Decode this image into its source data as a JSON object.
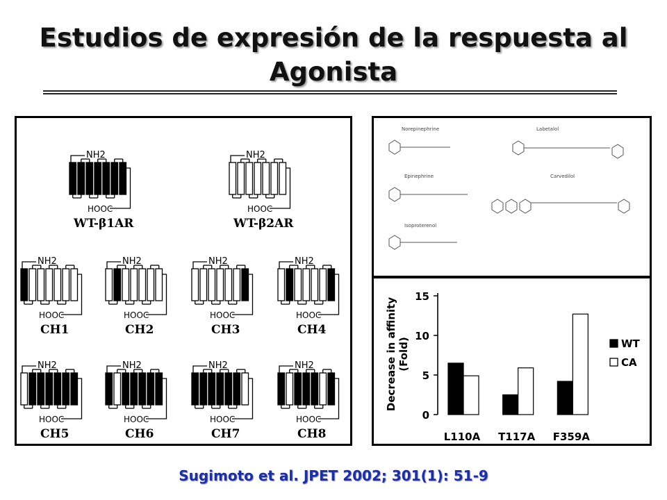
{
  "slide": {
    "title_line1": "Estudios de expresión de la respuesta al",
    "title_line2": "Agonista",
    "citation": "Sugimoto et al. JPET 2002; 301(1): 51-9"
  },
  "receptors": {
    "nh2": "NH2",
    "hooc": "HOOC",
    "items": [
      {
        "label": "WT-β1AR",
        "pattern": [
          1,
          1,
          1,
          1,
          1,
          1,
          1
        ]
      },
      {
        "label": "WT-β2AR",
        "pattern": [
          0,
          0,
          0,
          0,
          0,
          0,
          0
        ]
      },
      {
        "label": "CH1",
        "pattern": [
          1,
          0,
          0,
          0,
          0,
          0,
          0
        ]
      },
      {
        "label": "CH2",
        "pattern": [
          0,
          1,
          0,
          0,
          0,
          0,
          0
        ]
      },
      {
        "label": "CH3",
        "pattern": [
          0,
          0,
          0,
          0,
          0,
          0,
          1
        ]
      },
      {
        "label": "CH4",
        "pattern": [
          0,
          1,
          0,
          0,
          0,
          0,
          1
        ]
      },
      {
        "label": "CH5",
        "pattern": [
          0,
          1,
          1,
          1,
          1,
          1,
          1
        ]
      },
      {
        "label": "CH6",
        "pattern": [
          1,
          0,
          1,
          1,
          1,
          1,
          1
        ]
      },
      {
        "label": "CH7",
        "pattern": [
          1,
          1,
          1,
          1,
          1,
          1,
          0
        ]
      },
      {
        "label": "CH8",
        "pattern": [
          1,
          0,
          1,
          1,
          1,
          0,
          1
        ]
      }
    ]
  },
  "compounds": {
    "norepinephrine": "Norepinephrine",
    "epinephrine": "Epinephrine",
    "isoproterenol": "Isoproterenol",
    "labetalol": "Labetalol",
    "carvedilol": "Carvedilol"
  },
  "chart_data": {
    "type": "bar",
    "title": "",
    "xlabel": "",
    "ylabel": "Decrease in affinity (Fold)",
    "ylabel_line1": "Decrease in affinity",
    "ylabel_line2": "(Fold)",
    "ylim": [
      0,
      15
    ],
    "yticks": [
      "0",
      "5",
      "10",
      "15"
    ],
    "categories": [
      "L110A",
      "T117A",
      "F359A"
    ],
    "series": [
      {
        "name": "WT",
        "values": [
          6.5,
          2.5,
          4.2
        ],
        "color": "#000000"
      },
      {
        "name": "CA",
        "values": [
          4.9,
          5.9,
          12.7
        ],
        "color": "#ffffff"
      }
    ],
    "legend_position": "right",
    "grid": false
  }
}
